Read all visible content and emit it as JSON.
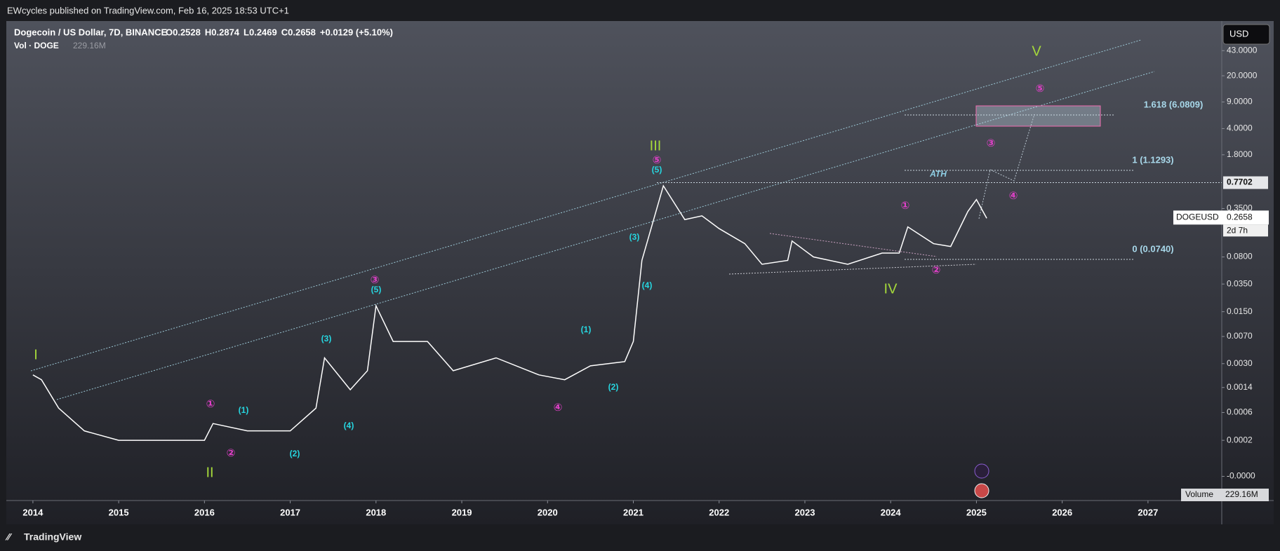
{
  "chart_data": {
    "type": "line",
    "publisher": "EWcycles published on TradingView.com, Feb 16, 2025 18:53 UTC+1",
    "title": "Dogecoin / US Dollar, 7D, BINANCE",
    "ohlc": [
      "O0.2528",
      "H0.2874",
      "L0.2469",
      "C0.2658",
      "+0.0129 (+5.10%)"
    ],
    "volume_title": "Vol · DOGE",
    "volume_value": "229.16M",
    "volume_pane_label": "Volume",
    "volume_pane_value": "229.16M",
    "currency": "USD",
    "footer": "TradingView",
    "log_scale": true,
    "x": [
      2014.0,
      2014.1,
      2014.3,
      2014.6,
      2015.0,
      2015.5,
      2016.0,
      2016.1,
      2016.5,
      2017.0,
      2017.3,
      2017.4,
      2017.7,
      2017.9,
      2018.0,
      2018.2,
      2018.6,
      2018.9,
      2019.4,
      2019.9,
      2020.2,
      2020.5,
      2020.9,
      2021.0,
      2021.1,
      2021.35,
      2021.6,
      2021.8,
      2022.0,
      2022.3,
      2022.5,
      2022.8,
      2022.85,
      2023.1,
      2023.5,
      2023.9,
      2024.1,
      2024.2,
      2024.5,
      2024.7,
      2024.9,
      2025.0,
      2025.12
    ],
    "series": [
      {
        "name": "DOGEUSD",
        "color": "#ffffff",
        "values": [
          0.0021,
          0.0018,
          0.0007,
          0.0003,
          0.0002,
          0.0002,
          0.0002,
          0.0004,
          0.0003,
          0.0003,
          0.0007,
          0.0036,
          0.0013,
          0.0024,
          0.018,
          0.006,
          0.006,
          0.0024,
          0.0036,
          0.0021,
          0.0018,
          0.0028,
          0.0032,
          0.006,
          0.072,
          0.7,
          0.25,
          0.28,
          0.19,
          0.12,
          0.064,
          0.072,
          0.13,
          0.08,
          0.064,
          0.09,
          0.09,
          0.2,
          0.12,
          0.11,
          0.32,
          0.46,
          0.26
        ]
      }
    ],
    "xlim": [
      2013.69,
      2027.86
    ],
    "xticks": [
      2014,
      2015,
      2016,
      2017,
      2018,
      2019,
      2020,
      2021,
      2022,
      2023,
      2024,
      2025,
      2026,
      2027
    ],
    "ylim": [
      -5e-05,
      106
    ],
    "yticks": [
      {
        "value": 43,
        "label": "43.0000"
      },
      {
        "value": 20,
        "label": "20.0000"
      },
      {
        "value": 9,
        "label": "9.0000"
      },
      {
        "value": 4,
        "label": "4.0000"
      },
      {
        "value": 1.8,
        "label": "1.8000"
      },
      {
        "value": 0.35,
        "label": "0.3500"
      },
      {
        "value": 0.08,
        "label": "0.0800"
      },
      {
        "value": 0.035,
        "label": "0.0350"
      },
      {
        "value": 0.015,
        "label": "0.0150"
      },
      {
        "value": 0.007,
        "label": "0.0070"
      },
      {
        "value": 0.003,
        "label": "0.0030"
      },
      {
        "value": 0.0014,
        "label": "0.0014"
      },
      {
        "value": 0.0006,
        "label": "0.0006"
      },
      {
        "value": 0.0002,
        "label": "0.0002"
      },
      {
        "value": 0,
        "label": "-0.0000"
      }
    ],
    "ath_level": {
      "value": 0.7702,
      "label": "0.7702"
    },
    "last_price": {
      "value": 0.2658,
      "label": "0.2658"
    },
    "countdown": "2d 7h",
    "annotations": [
      {
        "text": "I",
        "color": "#a5d93b"
      },
      {
        "text": "II",
        "color": "#a5d93b"
      },
      {
        "text": "III",
        "color": "#a5d93b"
      },
      {
        "text": "IV",
        "color": "#a5d93b"
      },
      {
        "text": "V",
        "color": "#a5d93b"
      },
      {
        "text": "①",
        "color": "#e040c8"
      },
      {
        "text": "②",
        "color": "#e040c8"
      },
      {
        "text": "③",
        "color": "#e040c8"
      },
      {
        "text": "④",
        "color": "#e040c8"
      },
      {
        "text": "⑤",
        "color": "#e040c8"
      },
      {
        "text": "①",
        "color": "#e040c8"
      },
      {
        "text": "②",
        "color": "#e040c8"
      },
      {
        "text": "③",
        "color": "#e040c8"
      },
      {
        "text": "④",
        "color": "#e040c8"
      },
      {
        "text": "⑤",
        "color": "#e040c8"
      },
      {
        "text": "(1)",
        "color": "#26d6e0"
      },
      {
        "text": "(2)",
        "color": "#26d6e0"
      },
      {
        "text": "(3)",
        "color": "#26d6e0"
      },
      {
        "text": "(4)",
        "color": "#26d6e0"
      },
      {
        "text": "(5)",
        "color": "#26d6e0"
      },
      {
        "text": "(1)",
        "color": "#26d6e0"
      },
      {
        "text": "(2)",
        "color": "#26d6e0"
      },
      {
        "text": "(3)",
        "color": "#26d6e0"
      },
      {
        "text": "(4)",
        "color": "#26d6e0"
      },
      {
        "text": "(5)",
        "color": "#26d6e0"
      },
      {
        "text": "ATH",
        "color": "#8fd0e6"
      },
      {
        "text": "1.618 (6.0809)",
        "color": "#a8d8ea"
      },
      {
        "text": "1 (1.1293)",
        "color": "#a8d8ea"
      },
      {
        "text": "0 (0.0740)",
        "color": "#a8d8ea"
      }
    ]
  }
}
